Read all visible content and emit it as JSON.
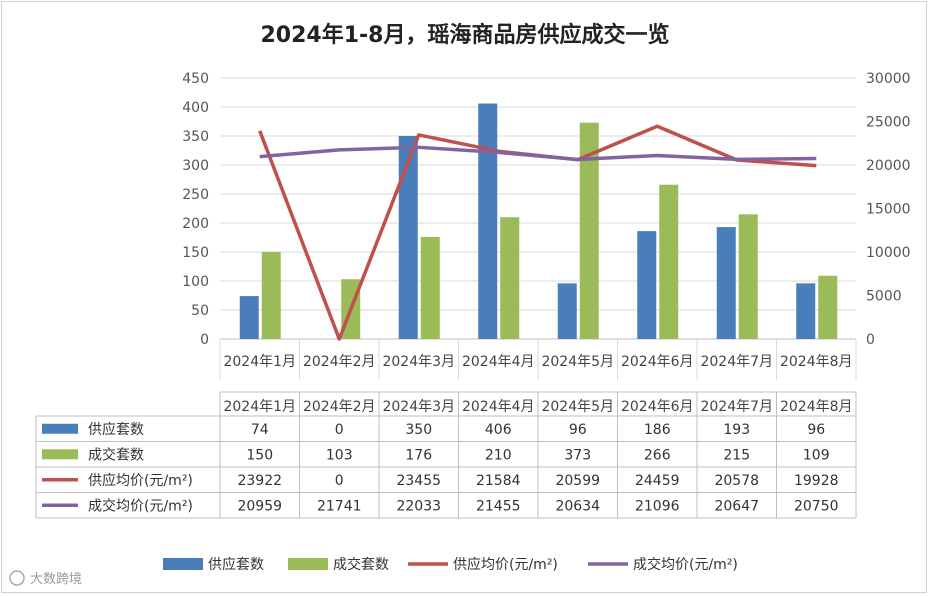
{
  "chart_data": {
    "type": "bar",
    "title": "2024年1-8月，瑶海商品房供应成交一览",
    "categories": [
      "2024年1月",
      "2024年2月",
      "2024年3月",
      "2024年4月",
      "2024年5月",
      "2024年6月",
      "2024年7月",
      "2024年8月"
    ],
    "left_axis": {
      "min": 0,
      "max": 450,
      "step": 50
    },
    "right_axis": {
      "min": 0,
      "max": 30000,
      "step": 5000
    },
    "series": [
      {
        "name": "供应套数",
        "type": "bar",
        "axis": "left",
        "color": "#4a7ebb",
        "values": [
          74,
          0,
          350,
          406,
          96,
          186,
          193,
          96
        ]
      },
      {
        "name": "成交套数",
        "type": "bar",
        "axis": "left",
        "color": "#9bbb59",
        "values": [
          150,
          103,
          176,
          210,
          373,
          266,
          215,
          109
        ]
      },
      {
        "name": "供应均价(元/m²)",
        "type": "line",
        "axis": "right",
        "color": "#c0504d",
        "values": [
          23922,
          0,
          23455,
          21584,
          20599,
          24459,
          20578,
          19928
        ]
      },
      {
        "name": "成交均价(元/m²)",
        "type": "line",
        "axis": "right",
        "color": "#8064a2",
        "values": [
          20959,
          21741,
          22033,
          21455,
          20634,
          21096,
          20647,
          20750
        ]
      }
    ],
    "legend_position": "bottom"
  },
  "watermark": {
    "text": "大数跨境"
  }
}
